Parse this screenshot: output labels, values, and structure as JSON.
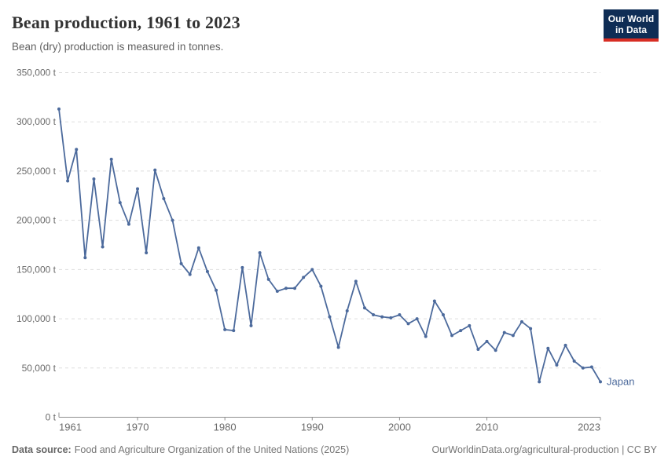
{
  "header": {
    "title": "Bean production, 1961 to 2023",
    "subtitle": "Bean (dry) production is measured in tonnes.",
    "logo": {
      "line1": "Our World",
      "line2": "in Data"
    }
  },
  "footer": {
    "source_label": "Data source:",
    "source_text": "Food and Agriculture Organization of the United Nations (2025)",
    "right_text": "OurWorldinData.org/agricultural-production | CC BY"
  },
  "colors": {
    "line": "#4c6a9c",
    "entity_label": "#4c6a9c",
    "grid": "#dddddd",
    "axis": "#8f8f8f",
    "tick_text": "#6b6b6b",
    "logo_navy": "#0f2d55",
    "logo_red": "#d72d23"
  },
  "chart_data": {
    "type": "line",
    "title": "Bean production, 1961 to 2023",
    "subtitle": "Bean (dry) production is measured in tonnes.",
    "unit": "t",
    "grid": "horizontal-dashed",
    "legend_position": "end-of-line-label",
    "xlim": [
      1961,
      2023
    ],
    "ylim": [
      0,
      350000
    ],
    "x_ticks": [
      1961,
      1970,
      1980,
      1990,
      2000,
      2010,
      2023
    ],
    "y_ticks": [
      0,
      50000,
      100000,
      150000,
      200000,
      250000,
      300000,
      350000
    ],
    "series": [
      {
        "name": "Japan",
        "color": "#4c6a9c",
        "x": [
          1961,
          1962,
          1963,
          1964,
          1965,
          1966,
          1967,
          1968,
          1969,
          1970,
          1971,
          1972,
          1973,
          1974,
          1975,
          1976,
          1977,
          1978,
          1979,
          1980,
          1981,
          1982,
          1983,
          1984,
          1985,
          1986,
          1987,
          1988,
          1989,
          1990,
          1991,
          1992,
          1993,
          1994,
          1995,
          1996,
          1997,
          1998,
          1999,
          2000,
          2001,
          2002,
          2003,
          2004,
          2005,
          2006,
          2007,
          2008,
          2009,
          2010,
          2011,
          2012,
          2013,
          2014,
          2015,
          2016,
          2017,
          2018,
          2019,
          2020,
          2021,
          2022,
          2023
        ],
        "values": [
          313000,
          240000,
          272000,
          162000,
          242000,
          173000,
          262000,
          218000,
          196000,
          232000,
          167000,
          251000,
          222000,
          200000,
          156000,
          145000,
          172000,
          148000,
          129000,
          89000,
          88000,
          152000,
          93000,
          167000,
          140000,
          128000,
          131000,
          131000,
          142000,
          150000,
          133000,
          102000,
          71000,
          108000,
          138000,
          111000,
          104000,
          102000,
          101000,
          104000,
          95000,
          100000,
          82000,
          118000,
          104000,
          83000,
          88000,
          93000,
          69000,
          77000,
          68000,
          86000,
          83000,
          97000,
          90000,
          36000,
          70000,
          53000,
          73000,
          57000,
          50000,
          51000,
          36000
        ]
      }
    ]
  }
}
